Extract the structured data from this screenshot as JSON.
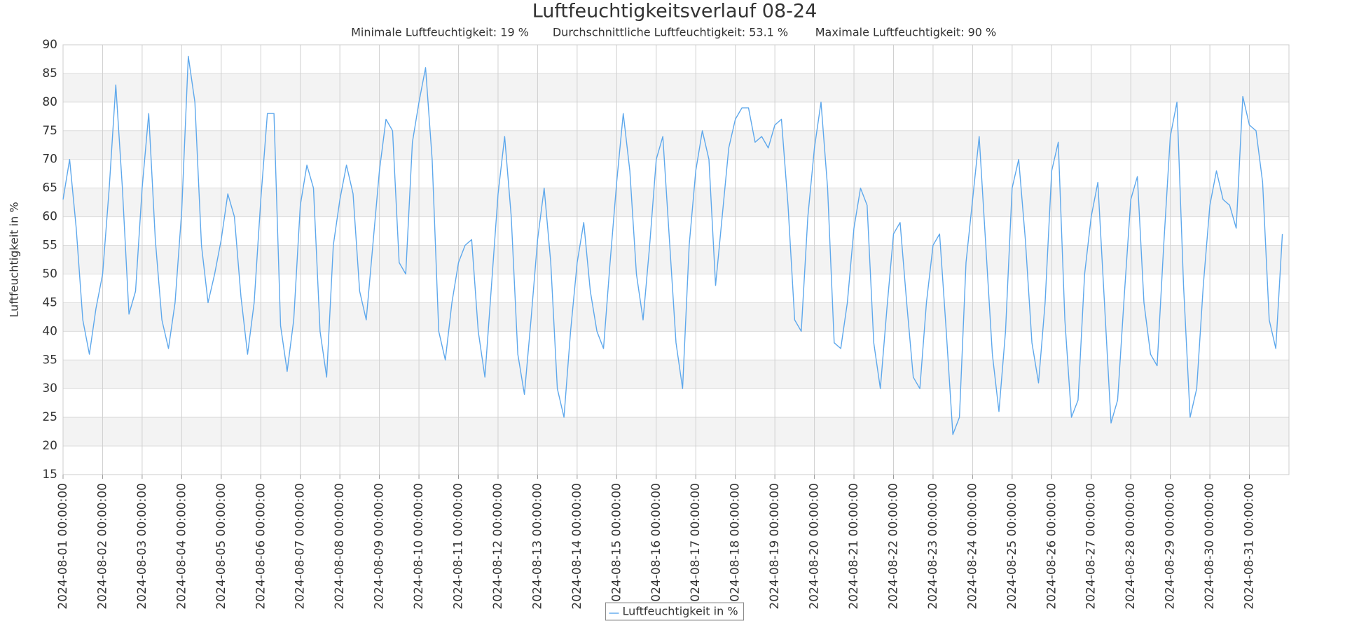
{
  "chart_data": {
    "type": "line",
    "title": "Luftfeuchtigkeitsverlauf 08-24",
    "subtitle": [
      "Minimale Luftfeuchtigkeit: 19 %",
      "Durchschnittliche Luftfeuchtigkeit: 53.1 %",
      "Maximale Luftfeuchtigkeit: 90 %"
    ],
    "ylabel": "Luftfeuchtigkeit in %",
    "xlim": [
      "2024-08-01 00:00:00",
      "2024-09-01 00:00:00"
    ],
    "xticks": [
      "2024-08-01 00:00:00",
      "2024-08-02 00:00:00",
      "2024-08-03 00:00:00",
      "2024-08-04 00:00:00",
      "2024-08-05 00:00:00",
      "2024-08-06 00:00:00",
      "2024-08-07 00:00:00",
      "2024-08-08 00:00:00",
      "2024-08-09 00:00:00",
      "2024-08-10 00:00:00",
      "2024-08-11 00:00:00",
      "2024-08-12 00:00:00",
      "2024-08-13 00:00:00",
      "2024-08-14 00:00:00",
      "2024-08-15 00:00:00",
      "2024-08-16 00:00:00",
      "2024-08-17 00:00:00",
      "2024-08-18 00:00:00",
      "2024-08-19 00:00:00",
      "2024-08-20 00:00:00",
      "2024-08-21 00:00:00",
      "2024-08-22 00:00:00",
      "2024-08-23 00:00:00",
      "2024-08-24 00:00:00",
      "2024-08-25 00:00:00",
      "2024-08-26 00:00:00",
      "2024-08-27 00:00:00",
      "2024-08-28 00:00:00",
      "2024-08-29 00:00:00",
      "2024-08-30 00:00:00",
      "2024-08-31 00:00:00"
    ],
    "ylim": [
      15,
      90
    ],
    "yticks": [
      15,
      20,
      25,
      30,
      35,
      40,
      45,
      50,
      55,
      60,
      65,
      70,
      75,
      80,
      85,
      90
    ],
    "grid": true,
    "legend": "bottom",
    "x": [
      "2024-08-01 00:00:00",
      "2024-08-01 04:00:00",
      "2024-08-01 08:00:00",
      "2024-08-01 12:00:00",
      "2024-08-01 16:00:00",
      "2024-08-01 20:00:00",
      "2024-08-02 00:00:00",
      "2024-08-02 04:00:00",
      "2024-08-02 08:00:00",
      "2024-08-02 12:00:00",
      "2024-08-02 16:00:00",
      "2024-08-02 20:00:00",
      "2024-08-03 00:00:00",
      "2024-08-03 04:00:00",
      "2024-08-03 08:00:00",
      "2024-08-03 12:00:00",
      "2024-08-03 16:00:00",
      "2024-08-03 20:00:00",
      "2024-08-04 00:00:00",
      "2024-08-04 04:00:00",
      "2024-08-04 08:00:00",
      "2024-08-04 12:00:00",
      "2024-08-04 16:00:00",
      "2024-08-04 20:00:00",
      "2024-08-05 00:00:00",
      "2024-08-05 04:00:00",
      "2024-08-05 08:00:00",
      "2024-08-05 12:00:00",
      "2024-08-05 16:00:00",
      "2024-08-05 20:00:00",
      "2024-08-06 00:00:00",
      "2024-08-06 04:00:00",
      "2024-08-06 08:00:00",
      "2024-08-06 12:00:00",
      "2024-08-06 16:00:00",
      "2024-08-06 20:00:00",
      "2024-08-07 00:00:00",
      "2024-08-07 04:00:00",
      "2024-08-07 08:00:00",
      "2024-08-07 12:00:00",
      "2024-08-07 16:00:00",
      "2024-08-07 20:00:00",
      "2024-08-08 00:00:00",
      "2024-08-08 04:00:00",
      "2024-08-08 08:00:00",
      "2024-08-08 12:00:00",
      "2024-08-08 16:00:00",
      "2024-08-08 20:00:00",
      "2024-08-09 00:00:00",
      "2024-08-09 04:00:00",
      "2024-08-09 08:00:00",
      "2024-08-09 12:00:00",
      "2024-08-09 16:00:00",
      "2024-08-09 20:00:00",
      "2024-08-10 00:00:00",
      "2024-08-10 04:00:00",
      "2024-08-10 08:00:00",
      "2024-08-10 12:00:00",
      "2024-08-10 16:00:00",
      "2024-08-10 20:00:00",
      "2024-08-11 00:00:00",
      "2024-08-11 04:00:00",
      "2024-08-11 08:00:00",
      "2024-08-11 12:00:00",
      "2024-08-11 16:00:00",
      "2024-08-11 20:00:00",
      "2024-08-12 00:00:00",
      "2024-08-12 04:00:00",
      "2024-08-12 08:00:00",
      "2024-08-12 12:00:00",
      "2024-08-12 16:00:00",
      "2024-08-12 20:00:00",
      "2024-08-13 00:00:00",
      "2024-08-13 04:00:00",
      "2024-08-13 08:00:00",
      "2024-08-13 12:00:00",
      "2024-08-13 16:00:00",
      "2024-08-13 20:00:00",
      "2024-08-14 00:00:00",
      "2024-08-14 04:00:00",
      "2024-08-14 08:00:00",
      "2024-08-14 12:00:00",
      "2024-08-14 16:00:00",
      "2024-08-14 20:00:00",
      "2024-08-15 00:00:00",
      "2024-08-15 04:00:00",
      "2024-08-15 08:00:00",
      "2024-08-15 12:00:00",
      "2024-08-15 16:00:00",
      "2024-08-15 20:00:00",
      "2024-08-16 00:00:00",
      "2024-08-16 04:00:00",
      "2024-08-16 08:00:00",
      "2024-08-16 12:00:00",
      "2024-08-16 16:00:00",
      "2024-08-16 20:00:00",
      "2024-08-17 00:00:00",
      "2024-08-17 04:00:00",
      "2024-08-17 08:00:00",
      "2024-08-17 12:00:00",
      "2024-08-17 16:00:00",
      "2024-08-17 20:00:00",
      "2024-08-18 00:00:00",
      "2024-08-18 04:00:00",
      "2024-08-18 08:00:00",
      "2024-08-18 12:00:00",
      "2024-08-18 16:00:00",
      "2024-08-18 20:00:00",
      "2024-08-19 00:00:00",
      "2024-08-19 04:00:00",
      "2024-08-19 08:00:00",
      "2024-08-19 12:00:00",
      "2024-08-19 16:00:00",
      "2024-08-19 20:00:00",
      "2024-08-20 00:00:00",
      "2024-08-20 04:00:00",
      "2024-08-20 08:00:00",
      "2024-08-20 12:00:00",
      "2024-08-20 16:00:00",
      "2024-08-20 20:00:00",
      "2024-08-21 00:00:00",
      "2024-08-21 04:00:00",
      "2024-08-21 08:00:00",
      "2024-08-21 12:00:00",
      "2024-08-21 16:00:00",
      "2024-08-21 20:00:00",
      "2024-08-22 00:00:00",
      "2024-08-22 04:00:00",
      "2024-08-22 08:00:00",
      "2024-08-22 12:00:00",
      "2024-08-22 16:00:00",
      "2024-08-22 20:00:00",
      "2024-08-23 00:00:00",
      "2024-08-23 04:00:00",
      "2024-08-23 08:00:00",
      "2024-08-23 12:00:00",
      "2024-08-23 16:00:00",
      "2024-08-23 20:00:00",
      "2024-08-24 00:00:00",
      "2024-08-24 04:00:00",
      "2024-08-24 08:00:00",
      "2024-08-24 12:00:00",
      "2024-08-24 16:00:00",
      "2024-08-24 20:00:00",
      "2024-08-25 00:00:00",
      "2024-08-25 04:00:00",
      "2024-08-25 08:00:00",
      "2024-08-25 12:00:00",
      "2024-08-25 16:00:00",
      "2024-08-25 20:00:00",
      "2024-08-26 00:00:00",
      "2024-08-26 04:00:00",
      "2024-08-26 08:00:00",
      "2024-08-26 12:00:00",
      "2024-08-26 16:00:00",
      "2024-08-26 20:00:00",
      "2024-08-27 00:00:00",
      "2024-08-27 04:00:00",
      "2024-08-27 08:00:00",
      "2024-08-27 12:00:00",
      "2024-08-27 16:00:00",
      "2024-08-27 20:00:00",
      "2024-08-28 00:00:00",
      "2024-08-28 04:00:00",
      "2024-08-28 08:00:00",
      "2024-08-28 12:00:00",
      "2024-08-28 16:00:00",
      "2024-08-28 20:00:00",
      "2024-08-29 00:00:00",
      "2024-08-29 04:00:00",
      "2024-08-29 08:00:00",
      "2024-08-29 12:00:00",
      "2024-08-29 16:00:00",
      "2024-08-29 20:00:00",
      "2024-08-30 00:00:00",
      "2024-08-30 04:00:00",
      "2024-08-30 08:00:00",
      "2024-08-30 12:00:00",
      "2024-08-30 16:00:00",
      "2024-08-30 20:00:00",
      "2024-08-31 00:00:00",
      "2024-08-31 04:00:00",
      "2024-08-31 08:00:00",
      "2024-08-31 12:00:00",
      "2024-08-31 16:00:00",
      "2024-08-31 20:00:00"
    ],
    "series": [
      {
        "name": "Luftfeuchtigkeit in %",
        "color": "#5ea8ec",
        "values": [
          63,
          70,
          58,
          42,
          36,
          44,
          50,
          65,
          83,
          65,
          43,
          47,
          65,
          78,
          56,
          42,
          37,
          45,
          61,
          88,
          80,
          55,
          45,
          50,
          56,
          64,
          60,
          46,
          36,
          45,
          63,
          78,
          78,
          41,
          33,
          42,
          62,
          69,
          65,
          40,
          32,
          55,
          63,
          69,
          64,
          47,
          42,
          55,
          68,
          77,
          75,
          52,
          50,
          73,
          80,
          86,
          70,
          40,
          35,
          45,
          52,
          55,
          56,
          40,
          32,
          48,
          64,
          74,
          60,
          36,
          29,
          42,
          56,
          65,
          52,
          30,
          25,
          40,
          52,
          59,
          47,
          40,
          37,
          52,
          66,
          78,
          68,
          50,
          42,
          55,
          70,
          74,
          56,
          38,
          30,
          55,
          68,
          75,
          70,
          48,
          60,
          72,
          77,
          79,
          79,
          73,
          74,
          72,
          76,
          77,
          62,
          42,
          40,
          60,
          72,
          80,
          65,
          38,
          37,
          45,
          58,
          65,
          62,
          38,
          30,
          44,
          57,
          59,
          45,
          32,
          30,
          45,
          55,
          57,
          40,
          22,
          25,
          52,
          63,
          74,
          55,
          36,
          26,
          40,
          65,
          70,
          56,
          38,
          31,
          45,
          68,
          73,
          42,
          25,
          28,
          50,
          60,
          66,
          45,
          24,
          28,
          46,
          63,
          67,
          45,
          36,
          34,
          55,
          74,
          80,
          48,
          25,
          30,
          48,
          62,
          68,
          63,
          62,
          58,
          81,
          76,
          75,
          66,
          42,
          37,
          57
        ]
      }
    ]
  }
}
